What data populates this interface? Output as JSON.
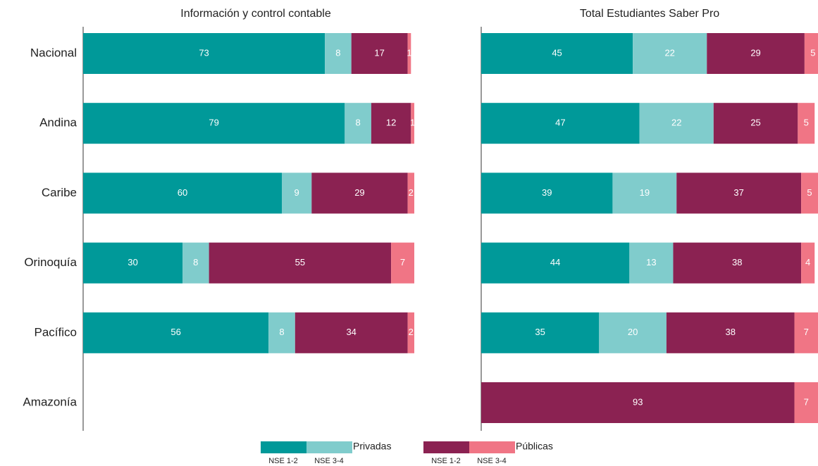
{
  "categories": [
    "Nacional",
    "Andina",
    "Caribe",
    "Orinoquía",
    "Pacífico",
    "Amazonía"
  ],
  "legend": [
    {
      "group": "Privadas",
      "items": [
        {
          "name": "NSE 1-2",
          "color": "#009999"
        },
        {
          "name": "NSE 3-4",
          "color": "#80cccc"
        }
      ]
    },
    {
      "group": "Públicas",
      "items": [
        {
          "name": "NSE 1-2",
          "color": "#8b2252"
        },
        {
          "name": "NSE 3-4",
          "color": "#f07585"
        }
      ]
    }
  ],
  "chart_data": [
    {
      "type": "bar",
      "orientation": "horizontal",
      "stacked": true,
      "title": "Información y control contable",
      "xlim": [
        0,
        100
      ],
      "series": [
        {
          "values": [
            73,
            79,
            60,
            30,
            56,
            null
          ]
        },
        {
          "values": [
            8,
            8,
            9,
            8,
            8,
            null
          ]
        },
        {
          "values": [
            17,
            12,
            29,
            55,
            34,
            null
          ]
        },
        {
          "values": [
            1,
            1,
            2,
            7,
            2,
            null
          ]
        }
      ]
    },
    {
      "type": "bar",
      "orientation": "horizontal",
      "stacked": true,
      "title": "Total Estudiantes Saber Pro",
      "xlim": [
        0,
        100
      ],
      "series": [
        {
          "values": [
            45,
            47,
            39,
            44,
            35,
            null
          ]
        },
        {
          "values": [
            22,
            22,
            19,
            13,
            20,
            null
          ]
        },
        {
          "values": [
            29,
            25,
            37,
            38,
            38,
            93
          ]
        },
        {
          "values": [
            5,
            5,
            5,
            4,
            7,
            7
          ]
        }
      ]
    }
  ]
}
